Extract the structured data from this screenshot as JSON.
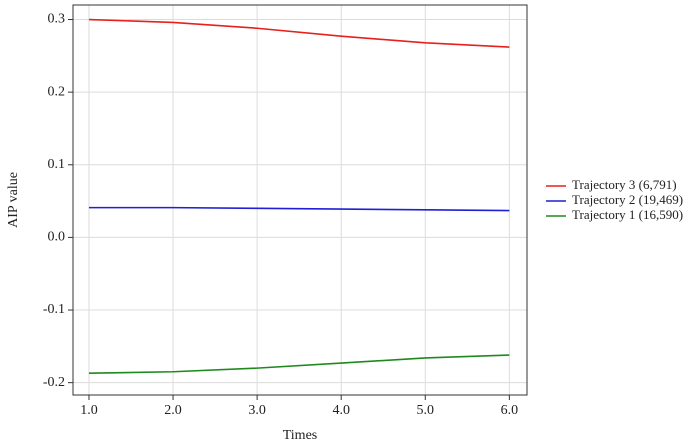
{
  "chart_data": {
    "type": "line",
    "x_label": "Times",
    "y_label": "AIP value",
    "x": [
      1,
      2,
      3,
      4,
      5,
      6
    ],
    "series": [
      {
        "name": "Trajectory 3 (6,791)",
        "color": "#e8201c",
        "values": [
          0.3,
          0.296,
          0.288,
          0.277,
          0.268,
          0.262
        ]
      },
      {
        "name": "Trajectory 2 (19,469)",
        "color": "#1f1fd6",
        "values": [
          0.041,
          0.041,
          0.04,
          0.039,
          0.038,
          0.037
        ]
      },
      {
        "name": "Trajectory 1 (16,590)",
        "color": "#1e8a1e",
        "values": [
          -0.187,
          -0.185,
          -0.18,
          -0.173,
          -0.166,
          -0.162
        ]
      }
    ],
    "xlim": [
      0.81,
      6.21
    ],
    "ylim": [
      -0.217,
      0.32
    ],
    "xticks": [
      {
        "value": 1,
        "label": "1.0"
      },
      {
        "value": 2,
        "label": "2.0"
      },
      {
        "value": 3,
        "label": "3.0"
      },
      {
        "value": 4,
        "label": "4.0"
      },
      {
        "value": 5,
        "label": "5.0"
      },
      {
        "value": 6,
        "label": "6.0"
      }
    ],
    "yticks": [
      -0.2,
      -0.1,
      {
        "value": 0,
        "label": "0.0"
      },
      0.1,
      0.2,
      0.3
    ],
    "grid": true,
    "legend": "right"
  }
}
